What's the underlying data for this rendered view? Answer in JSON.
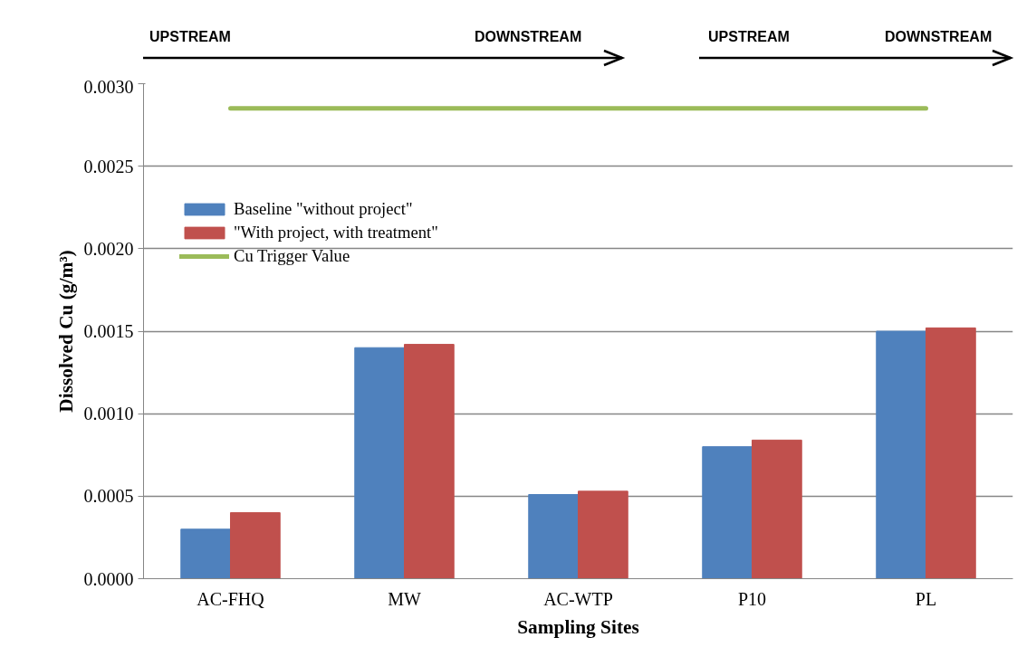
{
  "chart_data": {
    "type": "bar",
    "xlabel": "Sampling Sites",
    "ylabel": "Dissolved Cu (g/m³)",
    "categories": [
      "AC-FHQ",
      "MW",
      "AC-WTP",
      "P10",
      "PL"
    ],
    "series": [
      {
        "name": "Baseline \"without project\"",
        "color": "#4f81bd",
        "values": [
          0.0003,
          0.0014,
          0.00051,
          0.0008,
          0.0015
        ]
      },
      {
        "name": "\"With project, with treatment\"",
        "color": "#c0504d",
        "values": [
          0.0004,
          0.00142,
          0.00053,
          0.00084,
          0.00152
        ]
      },
      {
        "name": "Cu Trigger Value",
        "type": "line",
        "color": "#9bbb59",
        "values": [
          0.00285,
          0.00285,
          0.00285,
          0.00285,
          0.00285
        ]
      }
    ],
    "ylim": [
      0,
      0.003
    ],
    "yticks": [
      {
        "value": 0,
        "label": "0.0000"
      },
      {
        "value": 0.0005,
        "label": "0.0005"
      },
      {
        "value": 0.001,
        "label": "0.0010"
      },
      {
        "value": 0.0015,
        "label": "0.0015"
      },
      {
        "value": 0.002,
        "label": "0.0020"
      },
      {
        "value": 0.0025,
        "label": "0.0025"
      },
      {
        "value": 0.003,
        "label": "0.0030"
      }
    ],
    "grid": "y",
    "legend": "top left",
    "annotations": [
      "UPSTREAM",
      "DOWNSTREAM",
      "UPSTREAM",
      "DOWNSTREAM"
    ]
  }
}
